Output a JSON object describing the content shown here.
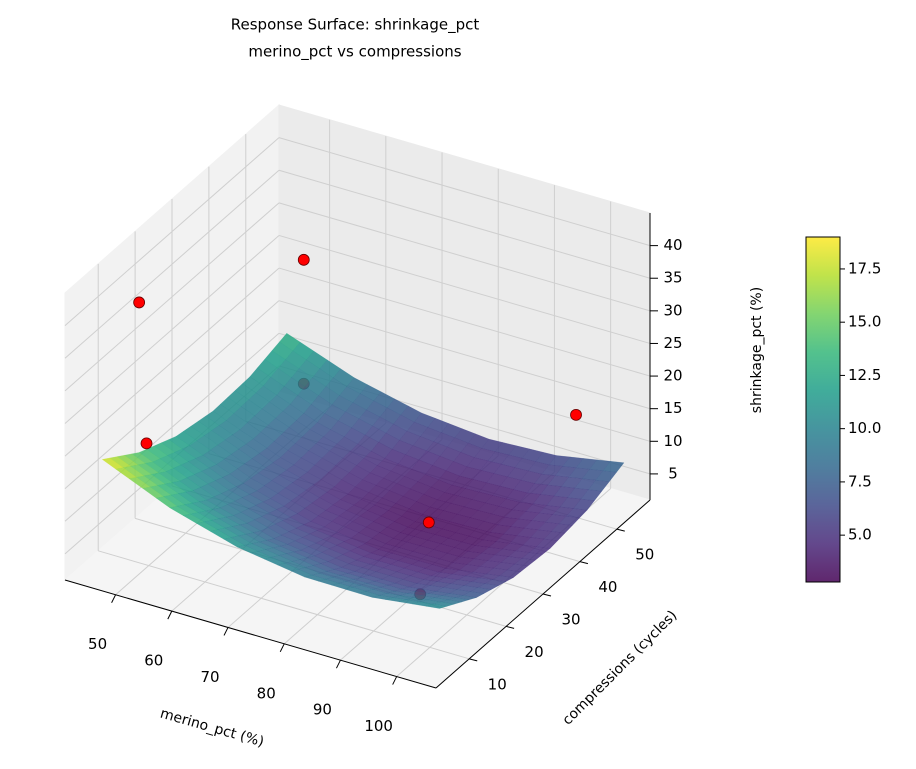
{
  "chart_data": {
    "type": "surface3d",
    "title": "Response Surface: shrinkage_pct",
    "subtitle": "merino_pct vs compressions",
    "x_label": "merino_pct (%)",
    "y_label": "compressions (cycles)",
    "z_label": "shrinkage_pct (%)",
    "x": [
      45,
      57,
      69,
      81,
      93,
      105
    ],
    "y": [
      5,
      15,
      25,
      35,
      45,
      55
    ],
    "z": [
      [
        18.5,
        14.1,
        11.1,
        9.5,
        9.4,
        10.7
      ],
      [
        14.6,
        10.3,
        7.4,
        6.0,
        6.0,
        7.4
      ],
      [
        12.1,
        7.9,
        5.1,
        3.8,
        3.9,
        5.5
      ],
      [
        11.0,
        6.9,
        4.3,
        3.1,
        3.3,
        5.0
      ],
      [
        11.3,
        7.3,
        4.8,
        3.7,
        4.1,
        5.9
      ],
      [
        13.0,
        9.2,
        6.8,
        5.8,
        6.3,
        8.2
      ]
    ],
    "colormap": [
      "#440154",
      "#482878",
      "#3e4a89",
      "#31688e",
      "#26828e",
      "#1f9e89",
      "#35b779",
      "#6ece58",
      "#b5de2b",
      "#fde725"
    ],
    "surface_alpha": 0.85,
    "clim": [
      2.8,
      19
    ],
    "points": {
      "x": [
        45,
        45,
        50,
        50,
        88,
        95,
        105
      ],
      "y": [
        15,
        17,
        52,
        52,
        28,
        15,
        42
      ],
      "z": [
        37.6,
        15,
        27,
        8,
        8.2,
        5.4,
        22
      ],
      "color": "#ff0000"
    },
    "xlim": [
      41,
      107
    ],
    "xticks": [
      50,
      60,
      70,
      80,
      90,
      100
    ],
    "ylim": [
      1,
      59
    ],
    "yticks": [
      10,
      20,
      30,
      40,
      50
    ],
    "zlim": [
      1,
      45
    ],
    "zticks": [
      5,
      10,
      15,
      20,
      25,
      30,
      35,
      40
    ],
    "colorbar_ticks": [
      {
        "value": 5,
        "label": "5.0"
      },
      7.5,
      {
        "value": 10,
        "label": "10.0"
      },
      12.5,
      {
        "value": 15,
        "label": "15.0"
      },
      17.5
    ]
  }
}
